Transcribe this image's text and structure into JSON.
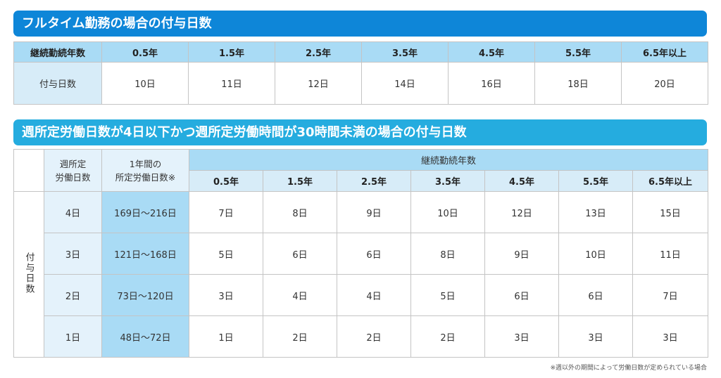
{
  "section1": {
    "title": "フルタイム勤務の場合の付与日数",
    "header_label": "継続勤続年数",
    "years": [
      "0.5年",
      "1.5年",
      "2.5年",
      "3.5年",
      "4.5年",
      "5.5年",
      "6.5年以上"
    ],
    "row_label": "付与日数",
    "days": [
      "10日",
      "11日",
      "12日",
      "14日",
      "16日",
      "18日",
      "20日"
    ]
  },
  "section2": {
    "title": "週所定労働日数が4日以下かつ週所定労働時間が30時間未満の場合の付与日数",
    "col_weekly_line1": "週所定",
    "col_weekly_line2": "労働日数",
    "col_annual_line1": "1年間の",
    "col_annual_line2": "所定労働日数※",
    "group_header": "継続勤続年数",
    "years": [
      "0.5年",
      "1.5年",
      "2.5年",
      "3.5年",
      "4.5年",
      "5.5年",
      "6.5年以上"
    ],
    "side_label": "付与日数",
    "rows": [
      {
        "weekly": "4日",
        "annual": "169日～216日",
        "days": [
          "7日",
          "8日",
          "9日",
          "10日",
          "12日",
          "13日",
          "15日"
        ]
      },
      {
        "weekly": "3日",
        "annual": "121日～168日",
        "days": [
          "5日",
          "6日",
          "6日",
          "8日",
          "9日",
          "10日",
          "11日"
        ]
      },
      {
        "weekly": "2日",
        "annual": "73日～120日",
        "days": [
          "3日",
          "4日",
          "4日",
          "5日",
          "6日",
          "6日",
          "7日"
        ]
      },
      {
        "weekly": "1日",
        "annual": "48日～72日",
        "days": [
          "1日",
          "2日",
          "2日",
          "2日",
          "3日",
          "3日",
          "3日"
        ]
      }
    ]
  },
  "footnote": "※週以外の期間によって労働日数が定められている場合"
}
